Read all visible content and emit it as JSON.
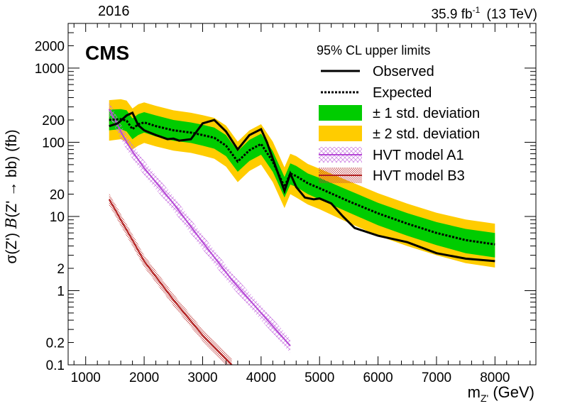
{
  "header": {
    "year": "2016",
    "lumi_value": "35.9 fb",
    "lumi_exp": "-1",
    "energy": "(13 TeV)"
  },
  "cms_label": "CMS",
  "legend": {
    "header": "95% CL upper limits",
    "observed": "Observed",
    "expected": "Expected",
    "one_sigma": "± 1 std. deviation",
    "two_sigma": "± 2 std. deviation",
    "hvt_a1": "HVT model A1",
    "hvt_b3": "HVT model B3"
  },
  "axes": {
    "xlabel_base": "m",
    "xlabel_sub": "Z'",
    "xlabel_unit": " (GeV)",
    "ylabel_left": "σ(Z') ",
    "ylabel_B": "B",
    "ylabel_right": "(Z' → bb) (fb)"
  },
  "chart_data": {
    "type": "line",
    "xlim": [
      700,
      8700
    ],
    "ylim": [
      0.1,
      4000
    ],
    "yscale": "log",
    "xticks": [
      1000,
      2000,
      3000,
      4000,
      5000,
      6000,
      7000,
      8000
    ],
    "xtick_labels": [
      "1000",
      "2000",
      "3000",
      "4000",
      "5000",
      "6000",
      "7000",
      "8000"
    ],
    "yticks": [
      0.1,
      0.2,
      1,
      2,
      10,
      20,
      100,
      200,
      1000,
      2000
    ],
    "ytick_labels": [
      "0.1",
      "0.2",
      "1",
      "2",
      "10",
      "20",
      "100",
      "200",
      "1000",
      "2000"
    ],
    "legend_position": "top-right",
    "colors": {
      "one_sigma": "#00cc00",
      "two_sigma": "#ffcc00",
      "hvt_a1": "#b64ad6",
      "hvt_b3": "#b22222",
      "observed": "#000000",
      "expected": "#000000"
    },
    "observed": {
      "x": [
        1400,
        1550,
        1700,
        1800,
        1900,
        2000,
        2200,
        2400,
        2500,
        2600,
        2800,
        3000,
        3200,
        3400,
        3600,
        3800,
        4000,
        4100,
        4200,
        4400,
        4500,
        4600,
        4750,
        4900,
        5000,
        5200,
        5400,
        5600,
        6000,
        6500,
        7000,
        7500,
        8000
      ],
      "y": [
        165,
        180,
        230,
        250,
        170,
        145,
        125,
        110,
        112,
        105,
        110,
        180,
        200,
        140,
        80,
        125,
        150,
        100,
        60,
        22,
        38,
        25,
        18,
        17,
        17.5,
        15,
        10,
        7,
        5.5,
        4.5,
        3.2,
        2.7,
        2.5
      ]
    },
    "expected": {
      "x": [
        1400,
        1600,
        1700,
        1800,
        1900,
        2000,
        2200,
        2500,
        2800,
        3000,
        3200,
        3400,
        3600,
        3800,
        4000,
        4200,
        4400,
        4500,
        4600,
        4800,
        5000,
        5500,
        6000,
        6500,
        7000,
        7500,
        8000
      ],
      "y": [
        200,
        205,
        195,
        150,
        175,
        185,
        165,
        145,
        135,
        125,
        115,
        90,
        55,
        78,
        95,
        55,
        25,
        38,
        35,
        28,
        24,
        16,
        11,
        8,
        6,
        4.8,
        4.2
      ]
    },
    "one_sigma": {
      "x": [
        1400,
        1600,
        1700,
        1800,
        1900,
        2000,
        2200,
        2500,
        2800,
        3000,
        3200,
        3400,
        3600,
        3800,
        4000,
        4200,
        4400,
        4500,
        4600,
        4800,
        5000,
        5500,
        6000,
        6500,
        7000,
        7500,
        8000
      ],
      "low": [
        145,
        150,
        140,
        110,
        125,
        135,
        120,
        105,
        98,
        90,
        82,
        65,
        40,
        56,
        68,
        40,
        18,
        27,
        25,
        20,
        17,
        11.3,
        7.6,
        5.5,
        4.1,
        3.2,
        2.8
      ],
      "high": [
        275,
        280,
        270,
        210,
        240,
        255,
        230,
        200,
        185,
        172,
        158,
        125,
        76,
        108,
        130,
        76,
        34,
        52,
        48,
        38,
        33,
        22.5,
        15.3,
        11.1,
        8.4,
        6.8,
        6.0
      ]
    },
    "two_sigma": {
      "x": [
        1400,
        1600,
        1700,
        1800,
        1900,
        2000,
        2200,
        2500,
        2800,
        3000,
        3200,
        3400,
        3600,
        3800,
        4000,
        4200,
        4400,
        4500,
        4600,
        4800,
        5000,
        5500,
        6000,
        6500,
        7000,
        7500,
        8000
      ],
      "low": [
        105,
        110,
        102,
        80,
        90,
        98,
        88,
        77,
        72,
        66,
        60,
        47,
        29,
        41,
        50,
        29,
        13,
        20,
        18,
        14.5,
        12.5,
        8.2,
        5.5,
        4.0,
        3.0,
        2.35,
        2.05
      ],
      "high": [
        370,
        380,
        365,
        285,
        325,
        345,
        310,
        270,
        250,
        232,
        213,
        168,
        102,
        145,
        175,
        102,
        46,
        70,
        65,
        51,
        44,
        30,
        20.6,
        14.9,
        11.2,
        9.1,
        8.0
      ]
    },
    "hvt_a1": {
      "x": [
        1400,
        1500,
        1600,
        1700,
        1800,
        2000,
        2500,
        3000,
        3500,
        4000,
        4500
      ],
      "y": [
        280,
        200,
        140,
        100,
        75,
        45,
        15,
        4.5,
        1.4,
        0.5,
        0.18
      ]
    },
    "hvt_b3": {
      "x": [
        1400,
        1500,
        1600,
        1800,
        2000,
        2500,
        3000,
        3500
      ],
      "y": [
        17,
        12.5,
        9,
        4.8,
        2.5,
        0.75,
        0.25,
        0.1
      ]
    }
  }
}
